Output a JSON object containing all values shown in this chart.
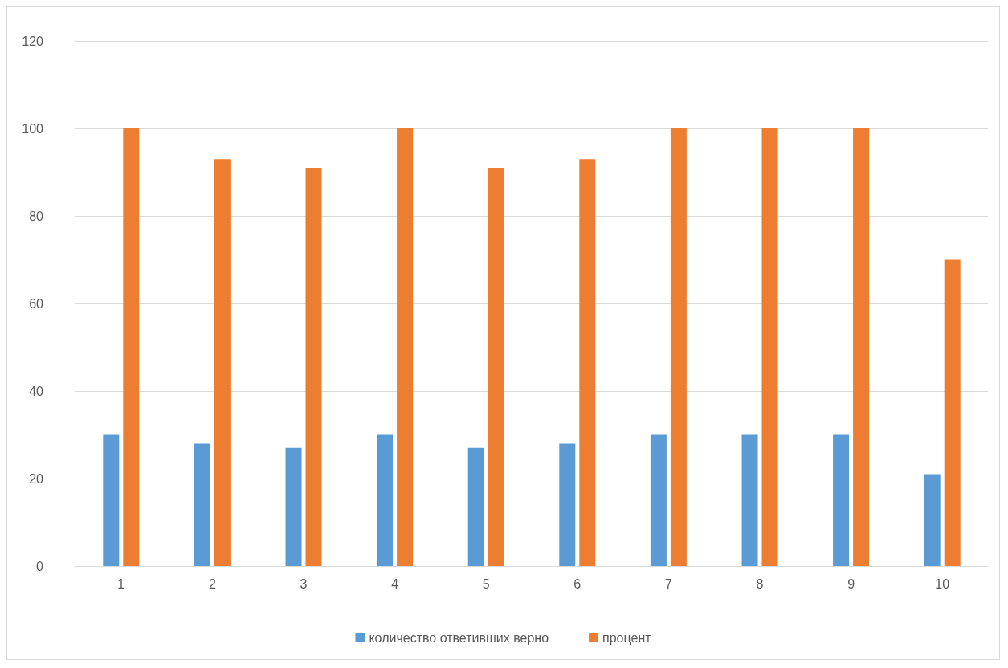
{
  "chart_data": {
    "type": "bar",
    "categories": [
      "1",
      "2",
      "3",
      "4",
      "5",
      "6",
      "7",
      "8",
      "9",
      "10"
    ],
    "series": [
      {
        "name": "количество ответивших верно",
        "color": "#5b9bd5",
        "values": [
          30,
          28,
          27,
          30,
          27,
          28,
          30,
          30,
          30,
          21
        ]
      },
      {
        "name": "процент",
        "color": "#ed7d31",
        "values": [
          100,
          93,
          91,
          100,
          91,
          93,
          100,
          100,
          100,
          70
        ]
      }
    ],
    "ylim": [
      0,
      120
    ],
    "yticks": [
      0,
      20,
      40,
      60,
      80,
      100,
      120
    ],
    "grid": "y",
    "legend": "bottom"
  }
}
